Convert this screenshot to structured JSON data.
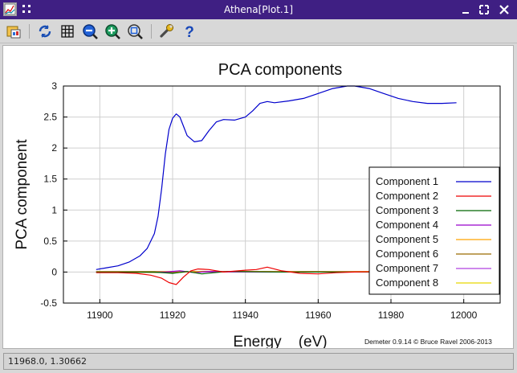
{
  "window": {
    "title": "Athena[Plot.1]"
  },
  "status": {
    "coords": "11968.0, 1.30662"
  },
  "chart_data": {
    "type": "line",
    "title": "PCA components",
    "xlabel": "Energy    (eV)",
    "ylabel": "PCA component",
    "xlim": [
      11890,
      12010
    ],
    "ylim": [
      -0.5,
      3
    ],
    "grid": true,
    "legend_position": "right",
    "x_ticks": [
      "11900",
      "11920",
      "11940",
      "11960",
      "11980",
      "12000"
    ],
    "y_ticks": [
      "-0.5",
      "0",
      "0.5",
      "1",
      "1.5",
      "2",
      "2.5",
      "3"
    ],
    "footnote": "Demeter 0.9.14 © Bruce Ravel 2006-2013",
    "series": [
      {
        "name": "Component 1",
        "color": "#0000cc",
        "x": [
          11899,
          11902,
          11905,
          11908,
          11911,
          11913,
          11915,
          11916,
          11917,
          11918,
          11919,
          11920,
          11921,
          11922,
          11923,
          11924,
          11926,
          11928,
          11930,
          11932,
          11934,
          11937,
          11940,
          11942,
          11944,
          11946,
          11948,
          11952,
          11956,
          11960,
          11964,
          11968,
          11970,
          11974,
          11978,
          11982,
          11986,
          11990,
          11994,
          11998
        ],
        "y": [
          0.04,
          0.07,
          0.1,
          0.16,
          0.26,
          0.38,
          0.62,
          0.9,
          1.35,
          1.9,
          2.3,
          2.48,
          2.55,
          2.5,
          2.35,
          2.2,
          2.1,
          2.12,
          2.28,
          2.42,
          2.46,
          2.45,
          2.5,
          2.6,
          2.72,
          2.75,
          2.73,
          2.76,
          2.8,
          2.88,
          2.96,
          3.0,
          3.0,
          2.96,
          2.88,
          2.8,
          2.75,
          2.72,
          2.72,
          2.73
        ]
      },
      {
        "name": "Component 2",
        "color": "#ee0000",
        "x": [
          11899,
          11905,
          11910,
          11914,
          11917,
          11919,
          11921,
          11923,
          11925,
          11927,
          11930,
          11934,
          11940,
          11943,
          11946,
          11950,
          11955,
          11960,
          11965,
          11970,
          11980,
          11990,
          11998
        ],
        "y": [
          -0.01,
          -0.01,
          -0.02,
          -0.05,
          -0.1,
          -0.17,
          -0.2,
          -0.08,
          0.02,
          0.05,
          0.04,
          0.0,
          0.03,
          0.04,
          0.08,
          0.02,
          -0.02,
          -0.03,
          -0.01,
          0.0,
          0.01,
          0.01,
          0.01
        ]
      },
      {
        "name": "Component 3",
        "color": "#006600",
        "x": [
          11899,
          11915,
          11920,
          11924,
          11928,
          11935,
          11950,
          11970,
          11998
        ],
        "y": [
          0.0,
          0.0,
          -0.02,
          0.01,
          -0.03,
          0.01,
          0.0,
          0.0,
          0.0
        ]
      },
      {
        "name": "Component 4",
        "color": "#9900cc",
        "x": [
          11899,
          11918,
          11922,
          11926,
          11930,
          11945,
          11998
        ],
        "y": [
          0.0,
          0.0,
          0.02,
          -0.01,
          0.01,
          0.0,
          0.0
        ]
      },
      {
        "name": "Component 5",
        "color": "#ffa500",
        "x": [
          11899,
          11920,
          11925,
          11930,
          11998
        ],
        "y": [
          0.01,
          0.01,
          0.0,
          0.01,
          0.01
        ]
      },
      {
        "name": "Component 6",
        "color": "#9b6a00",
        "x": [
          11899,
          11921,
          11926,
          11998
        ],
        "y": [
          0.0,
          -0.01,
          0.01,
          0.0
        ]
      },
      {
        "name": "Component 7",
        "color": "#b040e0",
        "x": [
          11899,
          11998
        ],
        "y": [
          0.0,
          0.0
        ]
      },
      {
        "name": "Component 8",
        "color": "#e8d800",
        "x": [
          11899,
          11998
        ],
        "y": [
          0.0,
          0.0
        ]
      }
    ]
  }
}
